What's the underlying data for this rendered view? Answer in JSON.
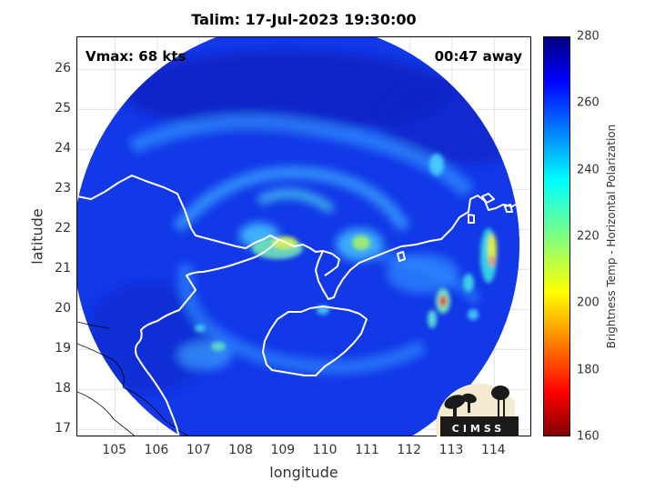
{
  "title": "Talim: 17-Jul-2023 19:30:00",
  "annotations": {
    "vmax": "Vmax: 68 kts",
    "time_away": "00:47 away"
  },
  "axes": {
    "xlabel": "longitude",
    "ylabel": "latitude",
    "x_ticks": [
      "105",
      "106",
      "107",
      "108",
      "109",
      "110",
      "111",
      "112",
      "113",
      "114"
    ],
    "y_ticks": [
      "17",
      "18",
      "19",
      "20",
      "21",
      "22",
      "23",
      "24",
      "25",
      "26"
    ],
    "x_range": [
      104.1,
      114.9
    ],
    "y_range": [
      16.8,
      26.8
    ]
  },
  "colorbar": {
    "label": "Brightness Temp - Horizontal Polarization",
    "ticks": [
      "160",
      "180",
      "200",
      "220",
      "240",
      "260",
      "280"
    ],
    "range": [
      160,
      280
    ],
    "colormap": "jet"
  },
  "swath": {
    "center": [
      109.3,
      21.6
    ],
    "radius_deg": 5.3,
    "background_tb": 268
  },
  "storm": {
    "name": "Talim",
    "center_lon": 108.8,
    "center_lat": 21.6
  },
  "logo": {
    "text": "CIMSS"
  },
  "colors": {
    "coastline": "#ffffff",
    "border": "#000000"
  }
}
